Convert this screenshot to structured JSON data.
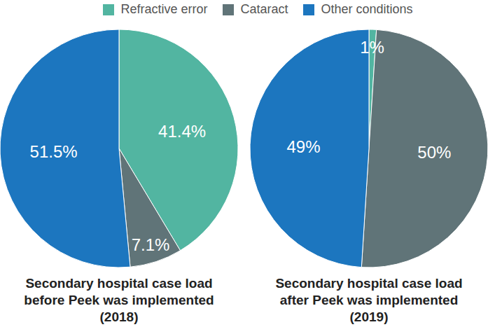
{
  "chart_data": [
    {
      "type": "pie",
      "title": "Secondary hospital case load\nbefore Peek was implemented\n(2018)",
      "categories": [
        "Refractive error",
        "Cataract",
        "Other conditions"
      ],
      "values": [
        41.4,
        7.1,
        51.5
      ],
      "value_labels": [
        "41.4%",
        "7.1%",
        "51.5%"
      ],
      "colors": [
        "#52b5a1",
        "#607478",
        "#1c76bf"
      ],
      "data_labels": true,
      "legend": "top"
    },
    {
      "type": "pie",
      "title": "Secondary hospital case load\nafter Peek was implemented\n(2019)",
      "categories": [
        "Refractive error",
        "Cataract",
        "Other conditions"
      ],
      "values": [
        1,
        50,
        49
      ],
      "value_labels": [
        "1%",
        "50%",
        "49%"
      ],
      "colors": [
        "#52b5a1",
        "#607478",
        "#1c76bf"
      ],
      "data_labels": true,
      "legend": "top"
    }
  ]
}
